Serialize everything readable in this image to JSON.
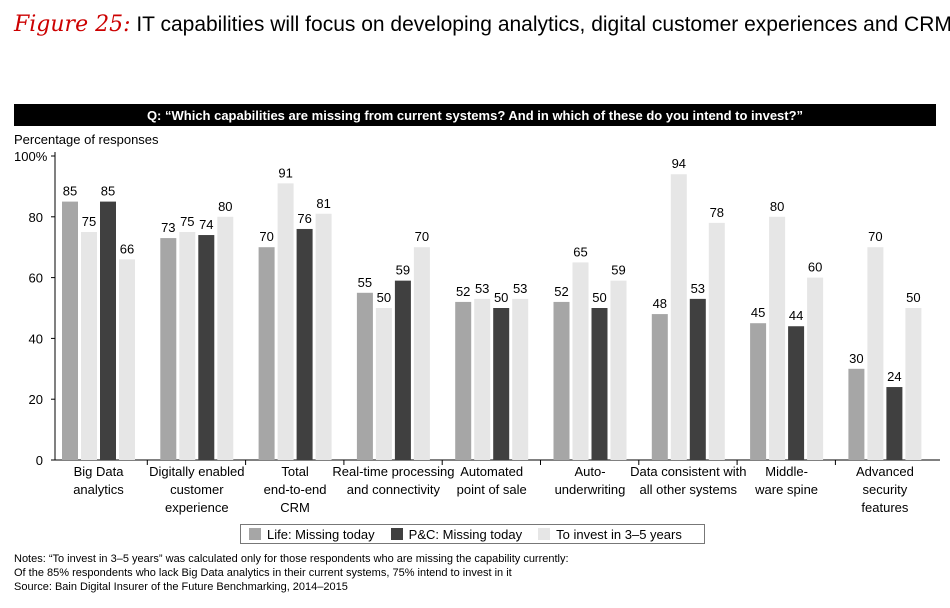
{
  "title": {
    "label": "Figure 25:",
    "text": "IT capabilities will focus on developing analytics, digital customer experiences and CRM"
  },
  "question": "Q: “Which capabilities are missing from current systems? And in which of these do you intend to invest?”",
  "notes": [
    "Notes: “To invest in 3–5 years” was calculated only for those respondents who are missing the capability currently:",
    "Of the 85% respondents who lack Big Data analytics in their current systems, 75% intend to invest in it",
    "Source: Bain Digital Insurer of the Future Benchmarking, 2014–2015"
  ],
  "colors": {
    "series": [
      "#a6a6a6",
      "#404040",
      "#e6e6e6"
    ]
  },
  "chart_data": {
    "type": "bar",
    "title": "IT capabilities will focus on developing analytics, digital customer experiences and CRM",
    "ylabel": "Percentage of responses",
    "ylim": [
      0,
      100
    ],
    "yticks": [
      "0",
      "20",
      "40",
      "60",
      "80",
      "100%"
    ],
    "grid": false,
    "legend_position": "bottom",
    "categories": [
      [
        "Big Data",
        "analytics"
      ],
      [
        "Digitally enabled",
        "customer",
        "experience"
      ],
      [
        "Total",
        "end-to-end",
        "CRM"
      ],
      [
        "Real-time processing",
        "and connectivity"
      ],
      [
        "Automated",
        "point of sale"
      ],
      [
        "Auto-",
        "underwriting"
      ],
      [
        "Data consistent with",
        "all other systems"
      ],
      [
        "Middle-",
        "ware spine"
      ],
      [
        "Advanced",
        "security",
        "features"
      ]
    ],
    "series": [
      {
        "name": "Life: Missing today",
        "values": [
          85,
          73,
          70,
          55,
          52,
          52,
          48,
          45,
          30
        ]
      },
      {
        "name": "To invest in 3–5 years",
        "values": [
          75,
          75,
          91,
          50,
          53,
          65,
          94,
          80,
          70
        ]
      },
      {
        "name": "P&C: Missing today",
        "values": [
          85,
          74,
          76,
          59,
          50,
          50,
          53,
          44,
          24
        ]
      },
      {
        "name": "To invest in 3–5 years",
        "values": [
          66,
          80,
          81,
          70,
          53,
          59,
          78,
          60,
          50
        ]
      }
    ],
    "legend": [
      "Life: Missing today",
      "P&C: Missing today",
      "To invest in 3–5 years"
    ]
  }
}
